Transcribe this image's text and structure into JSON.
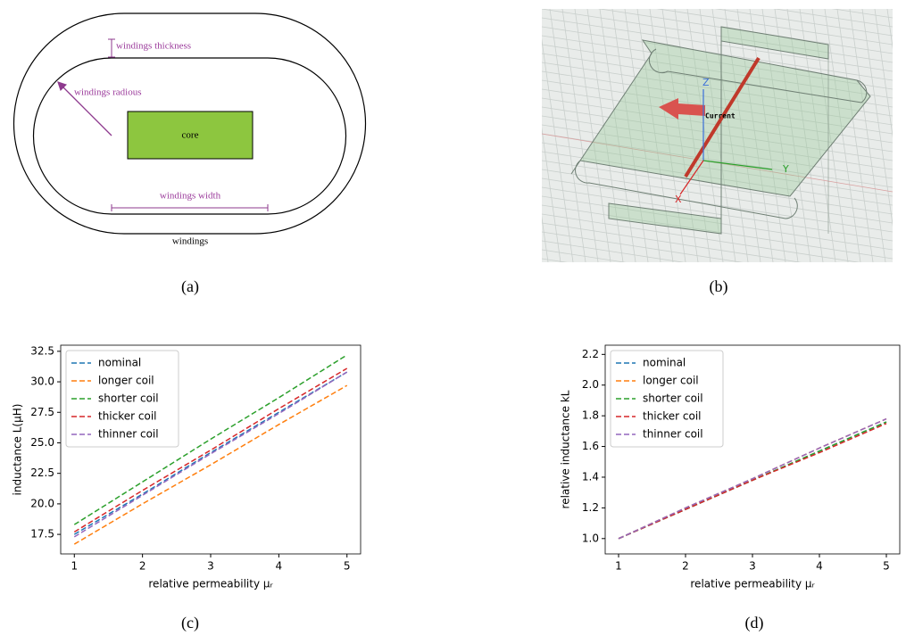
{
  "panels": {
    "a": {
      "label": "(a)",
      "core": "core",
      "windings": "windings",
      "thickness": "windings thickness",
      "radius": "windings radious",
      "width": "windings width"
    },
    "b": {
      "label": "(b)",
      "current": "Current",
      "z": "Z",
      "y": "Y",
      "x": "X"
    }
  },
  "chart_data": [
    {
      "type": "line",
      "panel_label": "(c)",
      "x_label": "relative permeability μᵣ",
      "y_label": "inductance L(μH)",
      "x": [
        1,
        2,
        3,
        4,
        5
      ],
      "xlim": [
        0.8,
        5.2
      ],
      "xticks": [
        1,
        2,
        3,
        4,
        5
      ],
      "ylim": [
        15.9,
        33.0
      ],
      "yticks": [
        17.5,
        {
          "value": 20,
          "label": "20.0"
        },
        22.5,
        {
          "value": 25,
          "label": "25.0"
        },
        27.5,
        {
          "value": 30,
          "label": "30.0"
        },
        32.5
      ],
      "legend": "upper left",
      "series": [
        {
          "name": "nominal",
          "color": "#1f77b4",
          "values": [
            17.5,
            20.8,
            24.2,
            27.5,
            30.8
          ]
        },
        {
          "name": "longer coil",
          "color": "#ff7f0e",
          "values": [
            16.7,
            20.0,
            23.2,
            26.5,
            29.7
          ]
        },
        {
          "name": "shorter coil",
          "color": "#2ca02c",
          "values": [
            18.3,
            21.8,
            25.3,
            28.7,
            32.2
          ]
        },
        {
          "name": "thicker coil",
          "color": "#d62728",
          "values": [
            17.7,
            21.1,
            24.4,
            27.8,
            31.1
          ]
        },
        {
          "name": "thinner coil",
          "color": "#9467bd",
          "values": [
            17.3,
            20.7,
            24.1,
            27.4,
            30.8
          ]
        }
      ]
    },
    {
      "type": "line",
      "panel_label": "(d)",
      "x_label": "relative permeability μᵣ",
      "y_label": "relative inductance kL",
      "x": [
        1,
        2,
        3,
        4,
        5
      ],
      "xlim": [
        0.8,
        5.2
      ],
      "xticks": [
        1,
        2,
        3,
        4,
        5
      ],
      "ylim": [
        0.9,
        2.26
      ],
      "yticks": [
        {
          "value": 1,
          "label": "1.0"
        },
        1.2,
        1.4,
        1.6,
        1.8,
        {
          "value": 2,
          "label": "2.0"
        },
        2.2
      ],
      "legend": "upper left",
      "series": [
        {
          "name": "nominal",
          "color": "#1f77b4",
          "values": [
            1.0,
            1.19,
            1.38,
            1.57,
            1.76
          ]
        },
        {
          "name": "longer coil",
          "color": "#ff7f0e",
          "values": [
            1.0,
            1.2,
            1.39,
            1.59,
            1.78
          ]
        },
        {
          "name": "shorter coil",
          "color": "#2ca02c",
          "values": [
            1.0,
            1.19,
            1.38,
            1.57,
            1.76
          ]
        },
        {
          "name": "thicker coil",
          "color": "#d62728",
          "values": [
            1.0,
            1.19,
            1.38,
            1.56,
            1.75
          ]
        },
        {
          "name": "thinner coil",
          "color": "#9467bd",
          "values": [
            1.0,
            1.2,
            1.39,
            1.59,
            1.78
          ]
        }
      ]
    }
  ]
}
